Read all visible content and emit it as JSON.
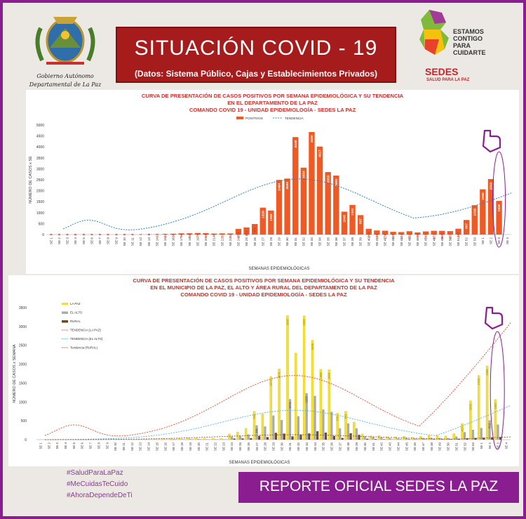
{
  "header": {
    "title": "SITUACIÓN  COVID - 19",
    "subtitle": "(Datos: Sistema Público, Cajas y Establecimientos Privados)",
    "logo_left_line1": "Gobierno Autónomo",
    "logo_left_line2": "Departamental de La Paz",
    "logo_right_line1": "ESTAMOS",
    "logo_right_line2": "CONTIGO",
    "logo_right_line3": "PARA",
    "logo_right_line4": "CUIDARTE",
    "logo_right_name": "SEDES",
    "logo_right_tagline": "SALUD PARA LA PAZ"
  },
  "footer": {
    "hashtags": [
      "#SaludParaLaPaz",
      "#MeCuidasTeCuido",
      "#AhoraDependeDeTi"
    ],
    "banner": "REPORTE OFICIAL SEDES LA PAZ"
  },
  "colors": {
    "purple": "#8a1e90",
    "red_banner": "#a61c1c",
    "orange_bar": "#ef5a24",
    "trend_blue": "#2f7fc1",
    "yellow_bar": "#f3e034",
    "gray_bar": "#aaaaaa",
    "brown_bar": "#6a4a2a",
    "title_red": "#c9302c"
  },
  "chart_data": [
    {
      "type": "bar",
      "title_lines": [
        "CURVA DE PRESENTACIÓN DE CASOS POSITIVOS POR SEMANA EPIDEMIOLÓGICA Y SU TENDENCIA",
        "EN EL DEPARTAMENTO DE LA PAZ",
        "COMANDO COVID 19 - UNIDAD EPIDEMIOLOGÍA - SEDES LA PAZ"
      ],
      "ylabel": "NÚMERO DE CASOS x SE",
      "xlabel": "SEMANAS EPIDEMIOLÓGICAS",
      "ylim": [
        0,
        5000
      ],
      "yticks": [
        "0",
        "500",
        "1000",
        "1500",
        "2000",
        "2500",
        "3000",
        "3500",
        "4000",
        "4500",
        "5000"
      ],
      "legend": [
        "POSITIVOS",
        "TENDENCIA"
      ],
      "categories": [
        "SE 1",
        "SE 2",
        "SE 3",
        "SE 4",
        "SE 5",
        "SE 6",
        "SE 7",
        "SE 8",
        "SE 9",
        "SE 10",
        "SE 11",
        "SE 12",
        "SE 13",
        "SE 14",
        "SE 15",
        "SE 16",
        "SE 17",
        "SE 18",
        "SE 19",
        "SE 20",
        "SE 21",
        "SE 22",
        "SE 23",
        "SE 24",
        "SE 25",
        "SE 26",
        "SE 27",
        "SE 28",
        "SE 29",
        "SE 30",
        "SE 31",
        "SE 32",
        "SE 33",
        "SE 34",
        "SE 35",
        "SE 36",
        "SE 37",
        "SE 38",
        "SE 39",
        "SE 40",
        "SE 41",
        "SE 42",
        "SE 43",
        "SE 44",
        "SE 45",
        "SE 46",
        "SE 47",
        "SE 48",
        "SE 49",
        "SE 50",
        "SE 51",
        "SE 52",
        "SE 53",
        "SE 1",
        "SE 2",
        "SE 3",
        "SE 4"
      ],
      "values": [
        0,
        0,
        0,
        0,
        0,
        0,
        0,
        0,
        0,
        0,
        0,
        1,
        9,
        13,
        24,
        38,
        56,
        58,
        70,
        65,
        45,
        53,
        52,
        259,
        327,
        481,
        1229,
        1098,
        2494,
        2556,
        4449,
        3054,
        4680,
        4017,
        2853,
        2693,
        1045,
        1352,
        887,
        264,
        186,
        176,
        125,
        113,
        152,
        98,
        143,
        171,
        169,
        157,
        267,
        667,
        1339,
        2066,
        2532,
        1536,
        0
      ],
      "labels": [
        "0",
        "0",
        "0",
        "0",
        "0",
        "0",
        "0",
        "0",
        "0",
        "0",
        "0",
        "1",
        "9",
        "13",
        "24",
        "38",
        "56",
        "58",
        "70",
        "65",
        "45",
        "53",
        "52",
        "259",
        "327",
        "481",
        "1229",
        "1098",
        "2494",
        "2556",
        "4449",
        "3054",
        "4680",
        "4017",
        "2853",
        "2693",
        "1045",
        "1352",
        "887",
        "264",
        "186",
        "176",
        "125",
        "113",
        "152",
        "98",
        "143",
        "171",
        "169",
        "157",
        "267",
        "667",
        "1339",
        "2066",
        "2532",
        "1536",
        ""
      ]
    },
    {
      "type": "bar",
      "title_lines": [
        "CURVA DE PRESENTACIÓN DE CASOS POSITIVOS POR SEMANA EPIDEMIOLÓGICA Y SU TENDENCIA",
        "EN EL  MUNICIPIO DE LA PAZ, EL ALTO Y ÁREA RURAL DEL DEPARTAMENTO DE LA PAZ",
        "COMANDO COVID 19 - UNIDAD EPIDEMIOLOGÍA - SEDES LA PAZ"
      ],
      "ylabel": "NÚMERO DE CASOS x SEMANA",
      "xlabel": "SEMANAS EPIDEMIOLÓGICAS",
      "ylim": [
        0,
        3500
      ],
      "yticks": [
        "0",
        "500",
        "1000",
        "1500",
        "2000",
        "2500",
        "3000",
        "3500"
      ],
      "legend": [
        "LA PAZ",
        "EL ALTO",
        "RURAL",
        "TENDENCIA (LA PAZ)",
        "TENDENCIA (EL ALTO)",
        "Tendencia (RURAL)"
      ],
      "categories": [
        "SE 1",
        "SE 2",
        "SE 3",
        "SE 4",
        "SE 5",
        "SE 6",
        "SE 7",
        "SE 8",
        "SE 9",
        "SE 10",
        "SE 11",
        "SE 12",
        "SE 13",
        "SE 14",
        "SE 15",
        "SE 16",
        "SE 17",
        "SE 18",
        "SE 19",
        "SE 20",
        "SE 21",
        "SE 22",
        "SE 23",
        "SE 24",
        "SE 25",
        "SE 26",
        "SE 27",
        "SE 28",
        "SE 29",
        "SE 30",
        "SE 31",
        "SE 32",
        "SE 33",
        "SE 34",
        "SE 35",
        "SE 36",
        "SE 37",
        "SE 38",
        "SE 39",
        "SE 40",
        "SE 41",
        "SE 42",
        "SE 43",
        "SE 44",
        "SE 45",
        "SE 46",
        "SE 47",
        "SE 48",
        "SE 49",
        "SE 50",
        "SE 51",
        "SE 52",
        "SE 53",
        "SE 1",
        "SE 2",
        "SE 3",
        "SE 4"
      ],
      "series": [
        {
          "name": "LA PAZ",
          "values": [
            0,
            0,
            0,
            0,
            0,
            0,
            0,
            0,
            0,
            0,
            0,
            1,
            5,
            8,
            15,
            25,
            35,
            38,
            45,
            40,
            30,
            35,
            35,
            150,
            200,
            300,
            750,
            680,
            1673,
            1875,
            3287,
            2298,
            3282,
            2635,
            1866,
            1854,
            700,
            753,
            460,
            150,
            100,
            110,
            80,
            70,
            90,
            60,
            90,
            110,
            110,
            100,
            160,
            427,
            1032,
            1703,
            1955,
            1067,
            0
          ]
        },
        {
          "name": "EL ALTO",
          "values": [
            0,
            0,
            0,
            0,
            0,
            0,
            0,
            0,
            0,
            0,
            0,
            0,
            3,
            4,
            7,
            10,
            15,
            15,
            20,
            20,
            12,
            14,
            13,
            80,
            95,
            140,
            380,
            350,
            640,
            520,
            1074,
            620,
            1233,
            1160,
            800,
            740,
            300,
            430,
            300,
            90,
            70,
            55,
            40,
            35,
            50,
            30,
            45,
            50,
            48,
            45,
            85,
            200,
            262,
            310,
            512,
            400,
            0
          ]
        },
        {
          "name": "RURAL",
          "values": [
            0,
            0,
            0,
            0,
            0,
            0,
            0,
            0,
            0,
            0,
            0,
            0,
            1,
            1,
            2,
            3,
            6,
            5,
            5,
            5,
            3,
            4,
            4,
            29,
            32,
            41,
            99,
            68,
            181,
            161,
            88,
            136,
            165,
            222,
            187,
            99,
            45,
            169,
            127,
            24,
            16,
            11,
            5,
            8,
            12,
            8,
            8,
            11,
            11,
            12,
            22,
            40,
            45,
            53,
            65,
            69,
            0
          ]
        }
      ],
      "labels": [
        "3287",
        "3282",
        "2635",
        "1955",
        "1703",
        "1673",
        "1875",
        "1866",
        "1854",
        "1233",
        "1074",
        "1032",
        "1067",
        "753",
        "750",
        "700",
        "512",
        "427",
        "380"
      ]
    }
  ]
}
